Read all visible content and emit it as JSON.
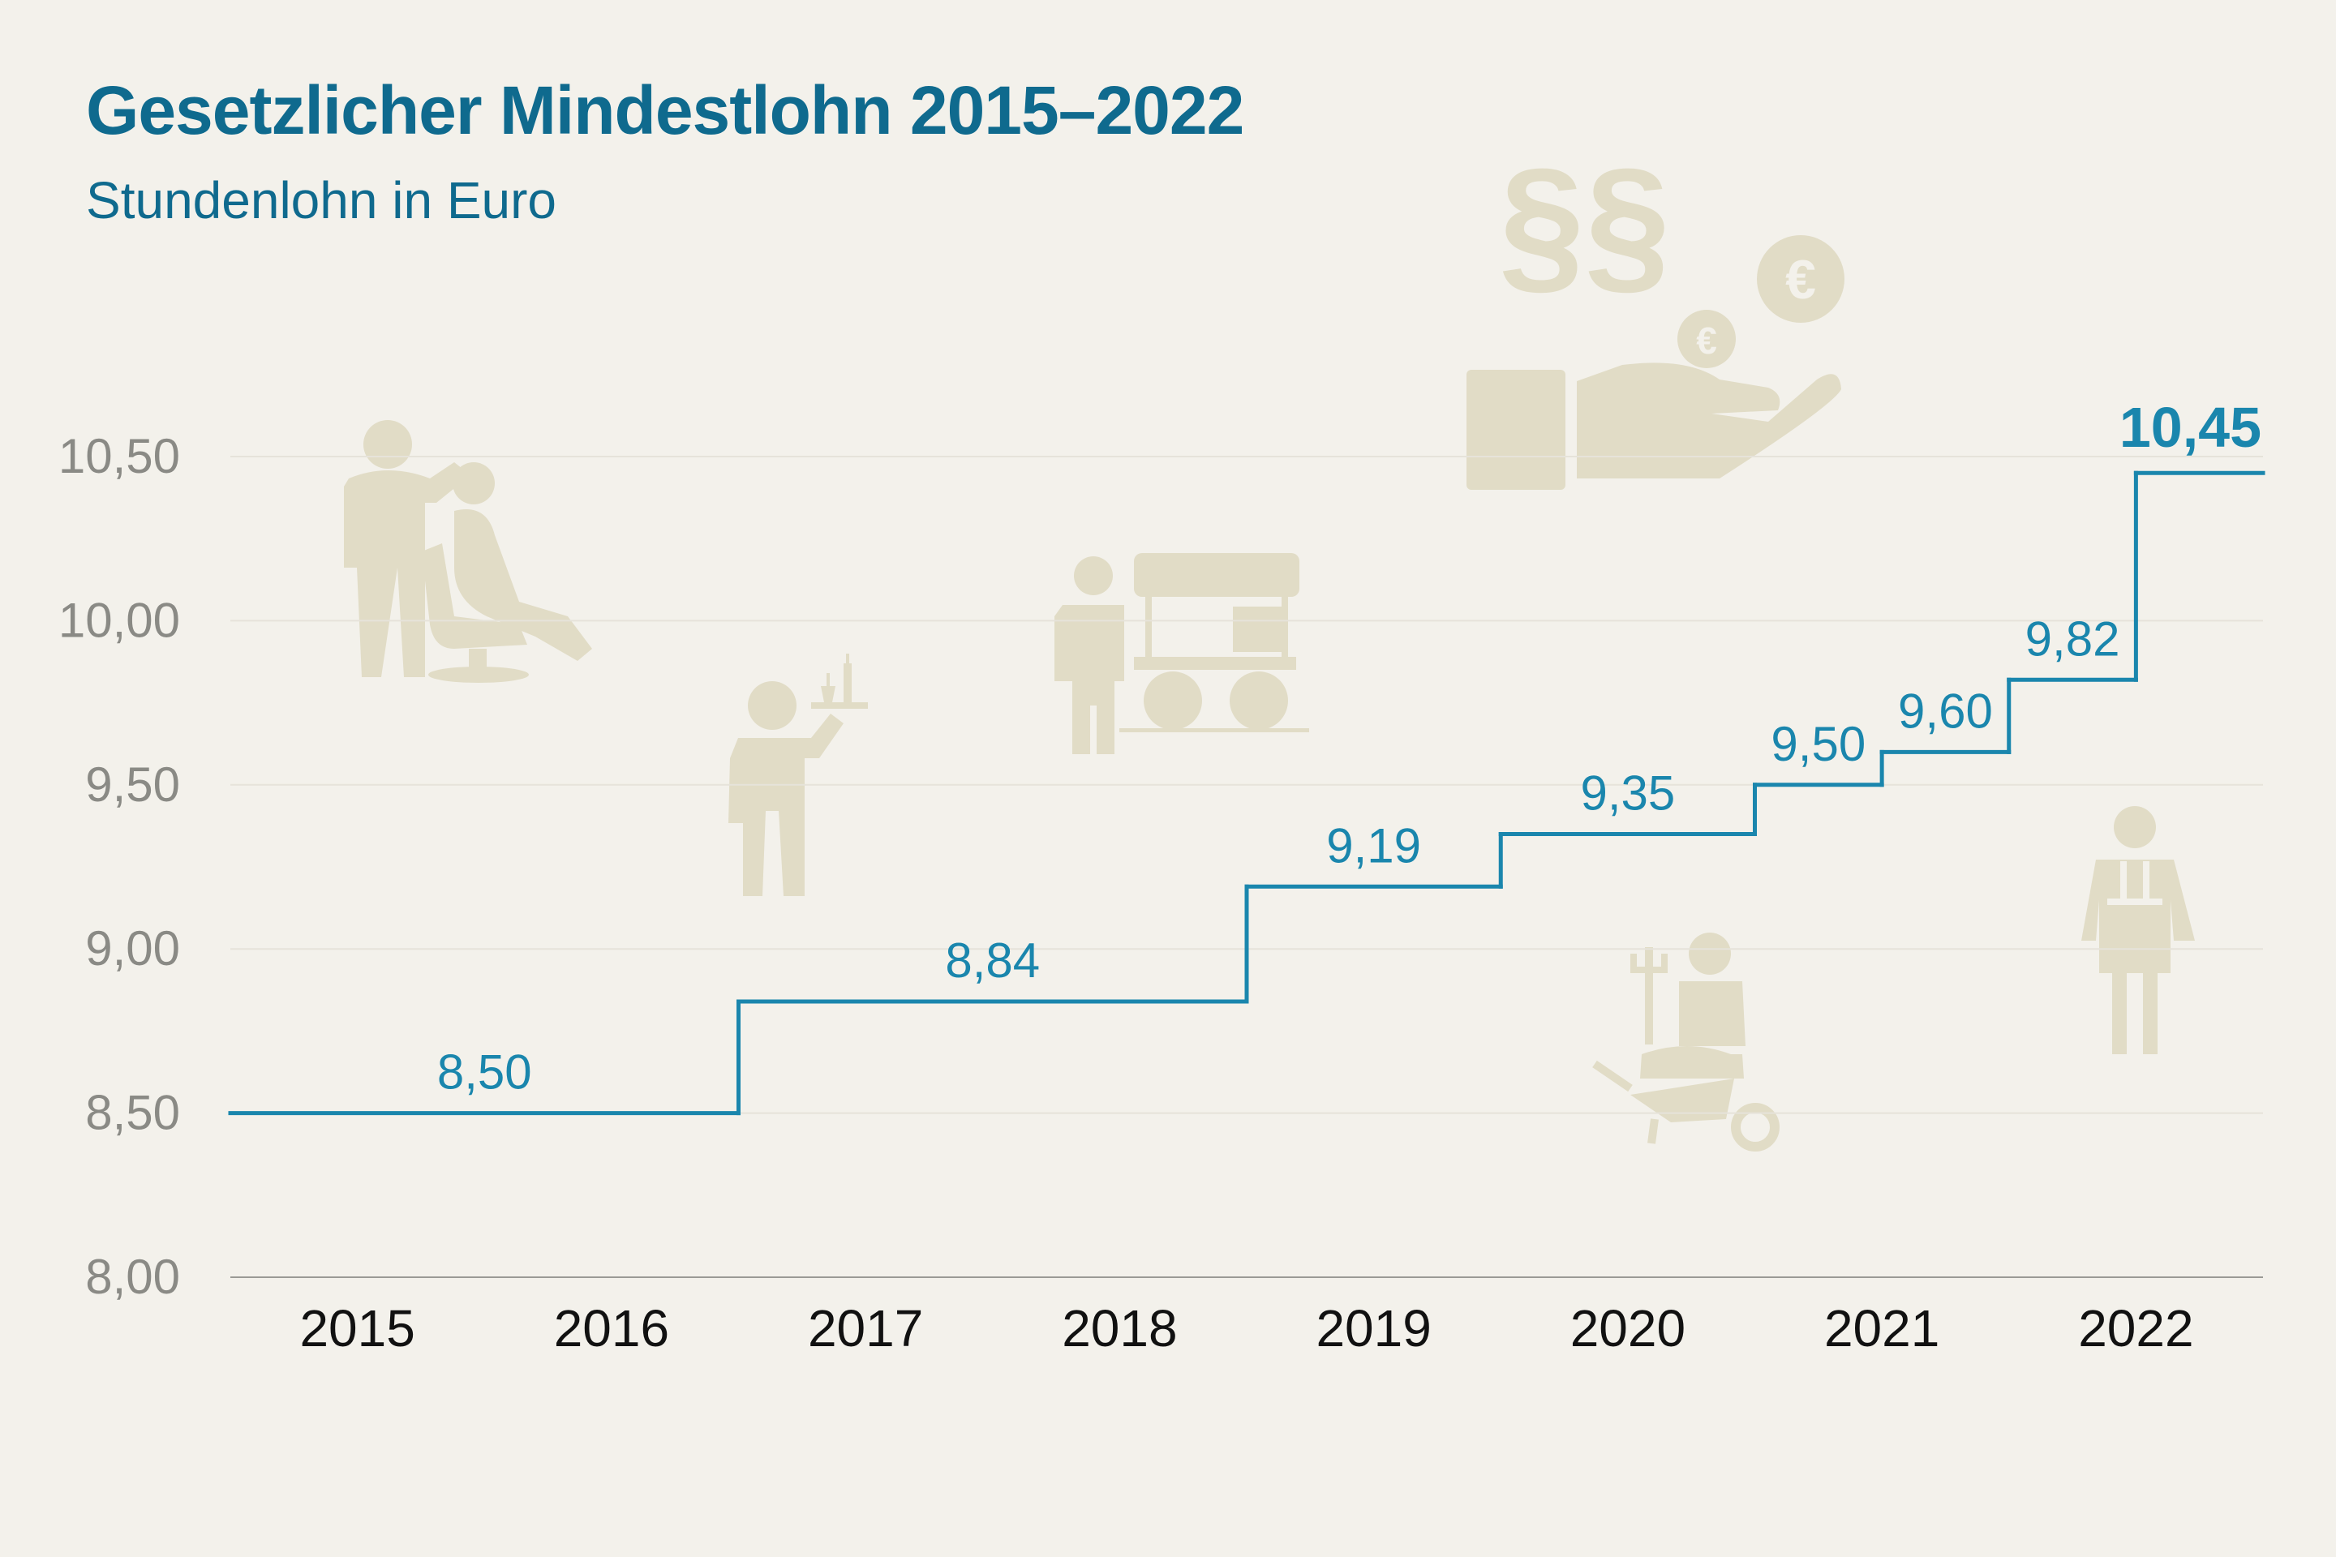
{
  "title": "Gesetzlicher Mindestlohn 2015–2022",
  "subtitle": "Stundenlohn in Euro",
  "colors": {
    "line": "#1a86ad",
    "title": "#0f6a8e",
    "icons": "#e1dcc6",
    "background": "#f3f1eb"
  },
  "icons": [
    "hairdresser-icon",
    "waiter-icon",
    "food-cart-vendor-icon",
    "paragraph-icon",
    "hand-with-euro-coins-icon",
    "gardener-wheelbarrow-icon",
    "apron-worker-icon"
  ],
  "chart_data": {
    "type": "line",
    "style": "step",
    "title": "Gesetzlicher Mindestlohn 2015–2022",
    "subtitle": "Stundenlohn in Euro",
    "xlabel": "",
    "ylabel": "",
    "categories": [
      "2015",
      "2016",
      "2017",
      "2018",
      "2019",
      "2020",
      "2021",
      "2022"
    ],
    "ylim": [
      8.0,
      10.5
    ],
    "y_ticks": [
      "8,00",
      "8,50",
      "9,00",
      "9,50",
      "10,00",
      "10,50"
    ],
    "grid": true,
    "series": [
      {
        "name": "Mindestlohn",
        "steps": [
          {
            "start": 2015.0,
            "end": 2017.0,
            "value": 8.5,
            "label": "8,50"
          },
          {
            "start": 2017.0,
            "end": 2019.0,
            "value": 8.84,
            "label": "8,84"
          },
          {
            "start": 2019.0,
            "end": 2020.0,
            "value": 9.19,
            "label": "9,19"
          },
          {
            "start": 2020.0,
            "end": 2021.0,
            "value": 9.35,
            "label": "9,35"
          },
          {
            "start": 2021.0,
            "end": 2021.5,
            "value": 9.5,
            "label": "9,50"
          },
          {
            "start": 2021.5,
            "end": 2022.0,
            "value": 9.6,
            "label": "9,60"
          },
          {
            "start": 2022.0,
            "end": 2022.5,
            "value": 9.82,
            "label": "9,82"
          },
          {
            "start": 2022.5,
            "end": 2023.0,
            "value": 10.45,
            "label": "10,45"
          }
        ]
      }
    ]
  }
}
